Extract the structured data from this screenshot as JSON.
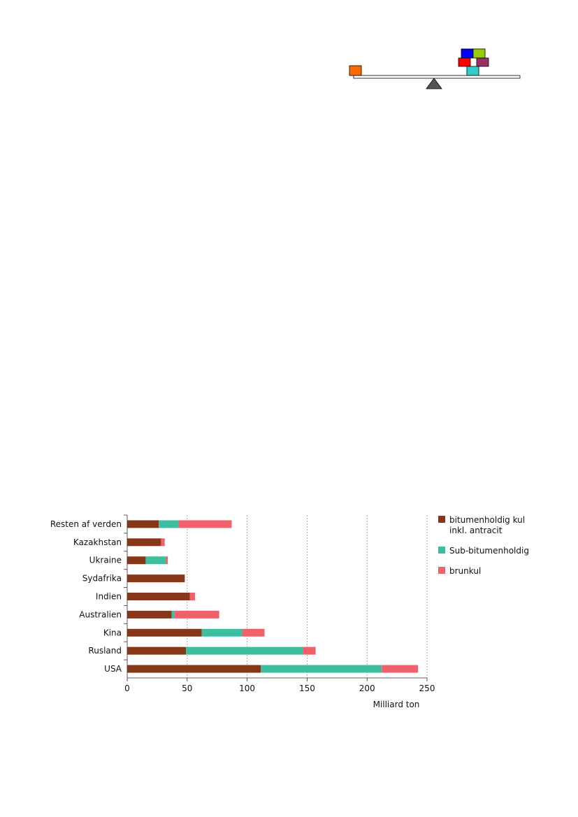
{
  "logo": {
    "name": "balance-scale-logo"
  },
  "chart_data": {
    "type": "bar",
    "orientation": "horizontal",
    "stacked": true,
    "categories": [
      "USA",
      "Rusland",
      "Kina",
      "Australien",
      "Indien",
      "Sydafrika",
      "Ukraine",
      "Kazakhstan",
      "Resten af verden"
    ],
    "series": [
      {
        "name": "bitumenholdig kul inkl. antracit",
        "legend_lines": [
          "bitumenholdig kul",
          "inkl. antracit"
        ],
        "color": "#86371a",
        "values": [
          111.3,
          49.1,
          62.2,
          37.1,
          52.2,
          48.0,
          15.4,
          28.2,
          26.3
        ]
      },
      {
        "name": "Sub-bitumenholdig",
        "legend_lines": [
          "Sub-bitumenholdig"
        ],
        "color": "#3dbf9f",
        "values": [
          101.0,
          97.5,
          33.7,
          2.1,
          0,
          0,
          16.6,
          0,
          16.8
        ]
      },
      {
        "name": "brunkul",
        "legend_lines": [
          "brunkul"
        ],
        "color": "#f0616b",
        "values": [
          30.2,
          10.5,
          18.6,
          37.5,
          4.3,
          0,
          1.9,
          3.1,
          44.0
        ]
      }
    ],
    "xlim": [
      0,
      250
    ],
    "xticks": [
      "0",
      "50",
      "100",
      "150",
      "200",
      "250"
    ],
    "xlabel": "Milliard ton",
    "grid": "vertical dotted",
    "legend_position": "right"
  }
}
